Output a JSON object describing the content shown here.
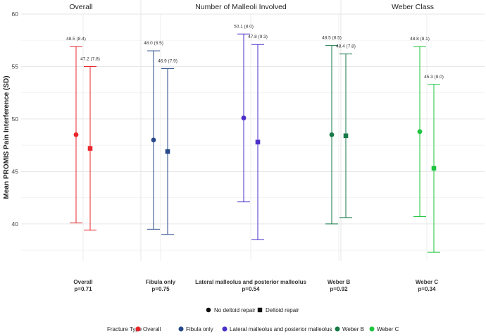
{
  "chart_data": {
    "type": "scatter",
    "title": "",
    "ylabel": "Mean PROMIS Pain Interference (SD)",
    "xlabel": "",
    "ylim": [
      36.5,
      60
    ],
    "yticks": [
      40,
      45,
      50,
      55,
      60
    ],
    "facets": [
      "Overall",
      "Number of Malleoli Involved",
      "Weber Class"
    ],
    "groups": [
      {
        "label": "Overall",
        "pvalue": "p=0.71",
        "color": "#e8262b",
        "facet": "Overall",
        "points": [
          {
            "repair": "No deltoid repair",
            "mean": 48.5,
            "lower": 40.1,
            "upper": 56.9,
            "label": "48.5 (8.4)"
          },
          {
            "repair": "Deltoid repair",
            "mean": 47.2,
            "lower": 39.4,
            "upper": 55.0,
            "label": "47.2 (7.8)"
          }
        ]
      },
      {
        "label": "Fibula only",
        "pvalue": "p=0.75",
        "color": "#27498a",
        "facet": "Number of Malleoli Involved",
        "points": [
          {
            "repair": "No deltoid repair",
            "mean": 48.0,
            "lower": 39.5,
            "upper": 56.5,
            "label": "48.0 (8.5)"
          },
          {
            "repair": "Deltoid repair",
            "mean": 46.9,
            "lower": 39.0,
            "upper": 54.8,
            "label": "46.9 (7.9)"
          }
        ]
      },
      {
        "label": "Lateral malleolus and posterior malleolus",
        "pvalue": "p=0.54",
        "color": "#4b2fc8",
        "facet": "Number of Malleoli Involved",
        "points": [
          {
            "repair": "No deltoid repair",
            "mean": 50.1,
            "lower": 42.1,
            "upper": 58.1,
            "label": "50.1 (8.0)"
          },
          {
            "repair": "Deltoid repair",
            "mean": 47.8,
            "lower": 38.5,
            "upper": 57.1,
            "label": "47.8 (9.3)"
          }
        ]
      },
      {
        "label": "Weber B",
        "pvalue": "p=0.92",
        "color": "#177a47",
        "facet": "Weber Class",
        "points": [
          {
            "repair": "No deltoid repair",
            "mean": 48.5,
            "lower": 40.0,
            "upper": 57.0,
            "label": "48.5 (8.5)"
          },
          {
            "repair": "Deltoid repair",
            "mean": 48.4,
            "lower": 40.6,
            "upper": 56.2,
            "label": "48.4 (7.8)"
          }
        ]
      },
      {
        "label": "Weber C",
        "pvalue": "p=0.34",
        "color": "#1fc43e",
        "facet": "Weber Class",
        "points": [
          {
            "repair": "No deltoid repair",
            "mean": 48.8,
            "lower": 40.7,
            "upper": 56.9,
            "label": "48.8 (8.1)"
          },
          {
            "repair": "Deltoid repair",
            "mean": 45.3,
            "lower": 37.3,
            "upper": 53.3,
            "label": "45.3 (8.0)"
          }
        ]
      }
    ],
    "shape_legend": {
      "items": [
        {
          "label": "No deltoid repair",
          "shape": "circle"
        },
        {
          "label": "Deltoid repair",
          "shape": "square"
        }
      ]
    },
    "color_legend": {
      "title": "Fracture Type",
      "items": [
        "Overall",
        "Fibula only",
        "Lateral malleolus and posterior malleolus",
        "Weber B",
        "Weber C"
      ]
    }
  }
}
